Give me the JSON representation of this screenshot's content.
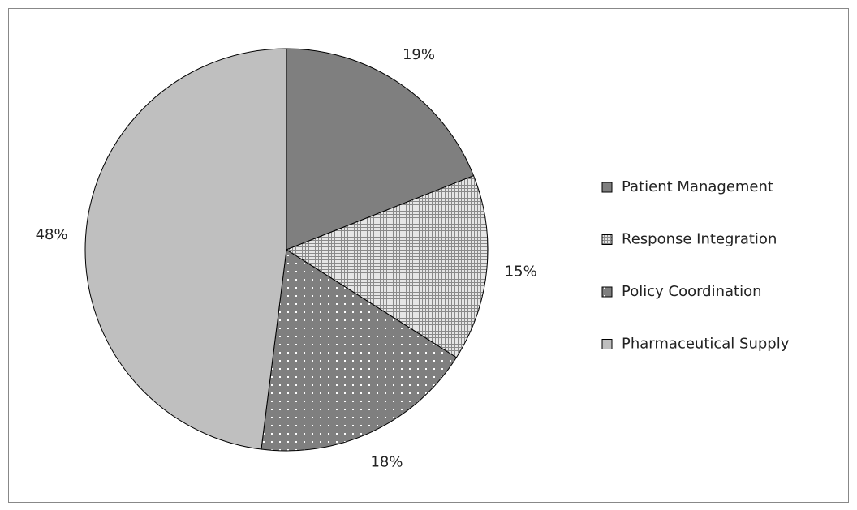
{
  "chart_data": {
    "type": "pie",
    "categories": [
      "Patient Management",
      "Response Integration",
      "Policy Coordination",
      "Pharmaceutical Supply"
    ],
    "values": [
      19,
      15,
      18,
      48
    ],
    "value_labels": [
      "19%",
      "15%",
      "18%",
      "48%"
    ],
    "colors": [
      "#7f7f7f",
      "#d9d9d9",
      "#7f7f7f",
      "#bfbfbf"
    ],
    "patterns": [
      "solid",
      "grid",
      "dots",
      "solid"
    ],
    "legend": "right"
  }
}
